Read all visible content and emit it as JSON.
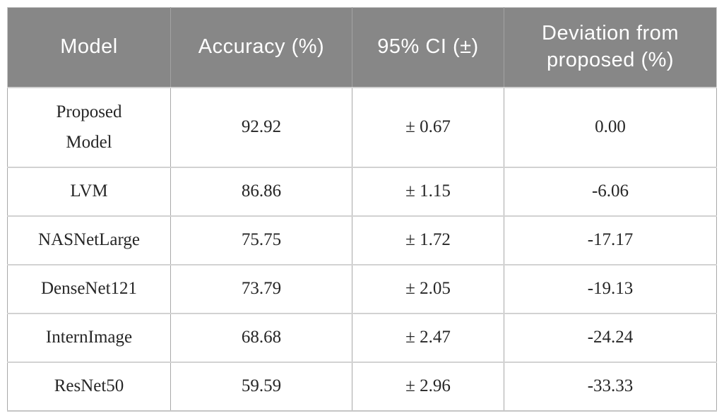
{
  "table": {
    "columns": [
      {
        "label": "Model"
      },
      {
        "label": "Accuracy (%)"
      },
      {
        "label": "95% CI (±)"
      },
      {
        "label": "Deviation from proposed (%)"
      }
    ],
    "rows": [
      {
        "model": "Proposed Model",
        "accuracy": "92.92",
        "ci": "± 0.67",
        "deviation": "0.00"
      },
      {
        "model": "LVM",
        "accuracy": "86.86",
        "ci": "± 1.15",
        "deviation": "-6.06"
      },
      {
        "model": "NASNetLarge",
        "accuracy": "75.75",
        "ci": "± 1.72",
        "deviation": "-17.17"
      },
      {
        "model": "DenseNet121",
        "accuracy": "73.79",
        "ci": "± 2.05",
        "deviation": "-19.13"
      },
      {
        "model": "InternImage",
        "accuracy": "68.68",
        "ci": "± 2.47",
        "deviation": "-24.24"
      },
      {
        "model": "ResNet50",
        "accuracy": "59.59",
        "ci": "± 2.96",
        "deviation": "-33.33"
      }
    ]
  },
  "colors": {
    "header_bg": "#878787",
    "header_text": "#ffffff",
    "body_text": "#262626",
    "vertical_border": "#a8a8a8",
    "horizontal_border": "#d2d2d2"
  }
}
